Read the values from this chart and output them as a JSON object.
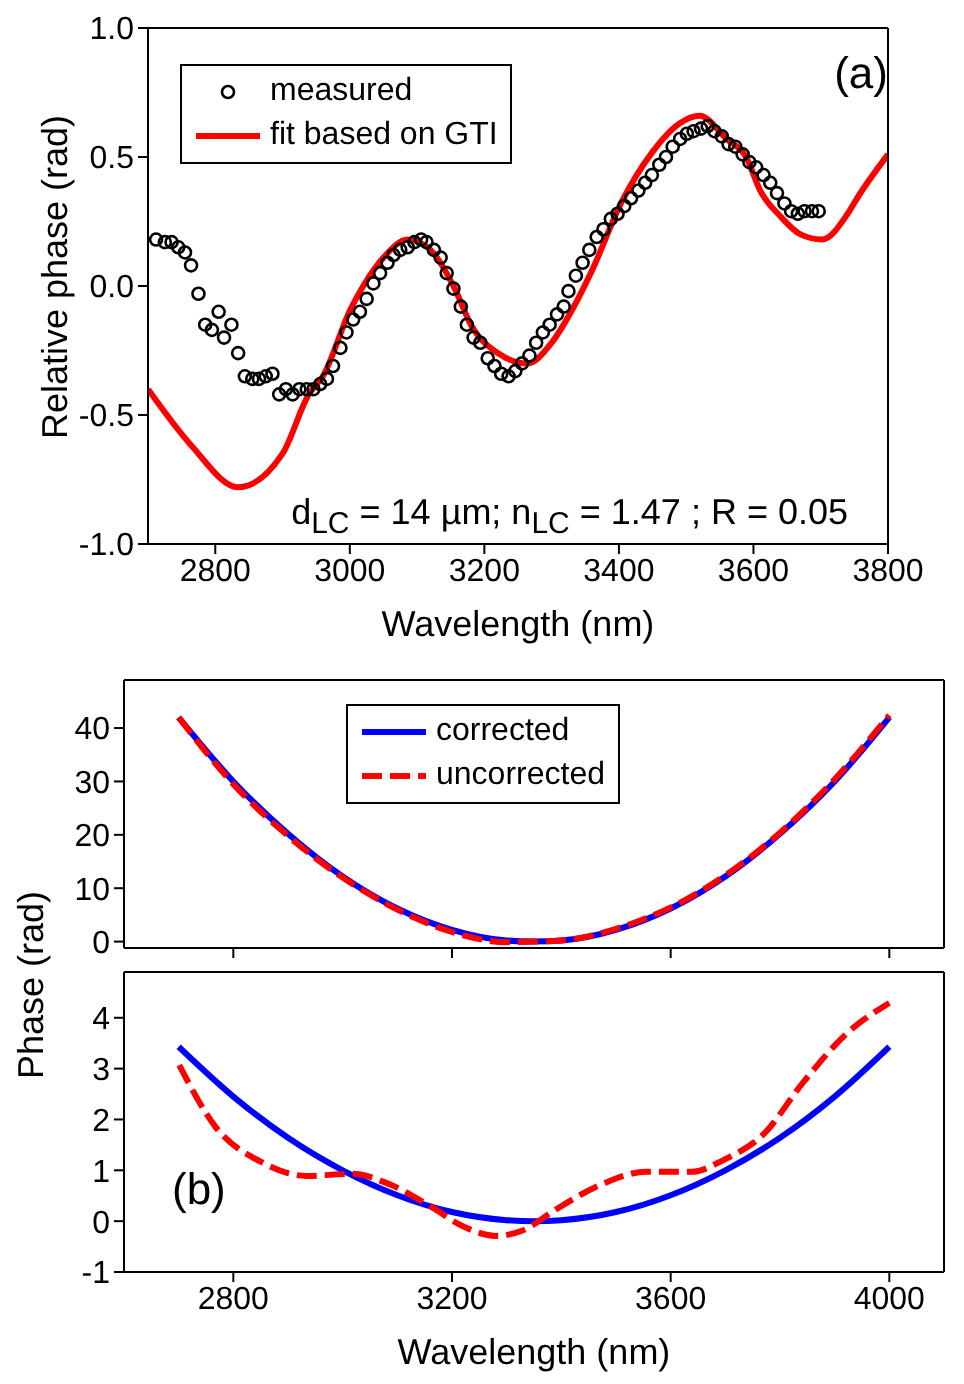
{
  "chart_data": [
    {
      "type": "line",
      "xlabel": "Wavelength (nm)",
      "ylabel": "Relative phase (rad)",
      "xlim": [
        2700,
        3800
      ],
      "xticks": [
        2800,
        3000,
        3200,
        3400,
        3600,
        3800
      ],
      "ylim": [
        -1,
        1
      ],
      "yticks": [
        {
          "value": -1,
          "label": "-1.0"
        },
        {
          "value": -0.5,
          "label": "-0.5"
        },
        {
          "value": 0,
          "label": "0.0"
        },
        {
          "value": 0.5,
          "label": "0.5"
        },
        {
          "value": 1,
          "label": "1.0"
        }
      ],
      "legend": "top left",
      "annotations": [
        "(a)",
        "d$_{LC}$ = 14 µm; n$_{LC}$ = 1.47 ; R = 0.05"
      ],
      "series": [
        {
          "name": "measured",
          "type": "scatter",
          "marker": "circle",
          "color": "#000000",
          "x": [
            2712,
            2725,
            2735,
            2745,
            2755,
            2764,
            2775,
            2785,
            2795,
            2805,
            2813,
            2824,
            2834,
            2844,
            2855,
            2865,
            2875,
            2885,
            2895,
            2905,
            2915,
            2925,
            2936,
            2946,
            2956,
            2966,
            2975,
            2986,
            2995,
            3005,
            3015,
            3025,
            3035,
            3045,
            3056,
            3065,
            3075,
            3086,
            3096,
            3106,
            3114,
            3125,
            3135,
            3144,
            3154,
            3165,
            3174,
            3184,
            3194,
            3205,
            3215,
            3225,
            3236,
            3246,
            3256,
            3267,
            3277,
            3287,
            3297,
            3308,
            3318,
            3325,
            3336,
            3346,
            3356,
            3367,
            3377,
            3388,
            3398,
            3408,
            3418,
            3429,
            3439,
            3449,
            3460,
            3470,
            3480,
            3491,
            3501,
            3511,
            3522,
            3532,
            3542,
            3553,
            3563,
            3573,
            3584,
            3594,
            3604,
            3615,
            3625,
            3635,
            3646,
            3656,
            3666,
            3676,
            3687,
            3697
          ],
          "values": [
            0.18,
            0.17,
            0.17,
            0.15,
            0.13,
            0.08,
            -0.03,
            -0.15,
            -0.17,
            -0.1,
            -0.2,
            -0.15,
            -0.26,
            -0.35,
            -0.36,
            -0.36,
            -0.35,
            -0.34,
            -0.42,
            -0.4,
            -0.42,
            -0.4,
            -0.4,
            -0.4,
            -0.38,
            -0.36,
            -0.31,
            -0.24,
            -0.18,
            -0.13,
            -0.1,
            -0.05,
            0.01,
            0.05,
            0.09,
            0.12,
            0.14,
            0.15,
            0.17,
            0.18,
            0.17,
            0.14,
            0.11,
            0.05,
            -0.01,
            -0.08,
            -0.15,
            -0.2,
            -0.22,
            -0.28,
            -0.31,
            -0.34,
            -0.35,
            -0.33,
            -0.3,
            -0.27,
            -0.22,
            -0.18,
            -0.15,
            -0.11,
            -0.08,
            -0.02,
            0.04,
            0.09,
            0.14,
            0.19,
            0.22,
            0.26,
            0.28,
            0.31,
            0.34,
            0.37,
            0.4,
            0.43,
            0.47,
            0.5,
            0.54,
            0.57,
            0.59,
            0.6,
            0.61,
            0.62,
            0.6,
            0.58,
            0.55,
            0.54,
            0.51,
            0.48,
            0.46,
            0.43,
            0.4,
            0.36,
            0.32,
            0.29,
            0.28,
            0.29,
            0.29,
            0.29
          ]
        },
        {
          "name": "fit based on GTI",
          "marker": "none",
          "color": "#ff0000",
          "x": [
            2700,
            2765,
            2834,
            2900,
            2939,
            2960,
            3001,
            3020,
            3050,
            3086,
            3120,
            3156,
            3180,
            3220,
            3264,
            3300,
            3331,
            3360,
            3403,
            3450,
            3490,
            3520,
            3560,
            3589,
            3610,
            3640,
            3670,
            3702,
            3740,
            3754,
            3800
          ],
          "values": [
            -0.4,
            -0.62,
            -0.78,
            -0.65,
            -0.42,
            -0.35,
            -0.09,
            0.0,
            0.11,
            0.18,
            0.14,
            -0.01,
            -0.15,
            -0.26,
            -0.3,
            -0.22,
            -0.09,
            0.06,
            0.32,
            0.52,
            0.63,
            0.66,
            0.57,
            0.5,
            0.37,
            0.27,
            0.2,
            0.18,
            0.28,
            0.34,
            0.51
          ]
        }
      ]
    },
    {
      "type": "line",
      "ylabel": "Phase (rad)",
      "xlim": [
        2600,
        4100
      ],
      "xticks": [
        2800,
        3200,
        3600,
        4000
      ],
      "ylim": [
        -1.2,
        49
      ],
      "yticks": [
        0,
        10,
        20,
        30,
        40
      ],
      "tick_labels": "y",
      "legend": "top",
      "x": [
        2700,
        2800,
        2900,
        3000,
        3100,
        3200,
        3300,
        3350,
        3400,
        3500,
        3600,
        3700,
        3800,
        3900,
        4000
      ],
      "series": [
        {
          "name": "corrected",
          "color": "#0000ff",
          "line_style": "solid",
          "values": [
            42,
            30,
            20.2,
            12.2,
            6.2,
            2.2,
            0.2,
            0,
            0.2,
            2.2,
            6.2,
            12.2,
            20.2,
            30,
            42
          ]
        },
        {
          "name": "uncorrected",
          "color": "#ff0000",
          "line_style": "dashed",
          "values": [
            42,
            29.5,
            19.8,
            12,
            6,
            1.8,
            -0.1,
            0,
            0.2,
            2.4,
            6.4,
            12.4,
            20.4,
            30.4,
            42.4
          ]
        }
      ]
    },
    {
      "type": "line",
      "xlabel": "Wavelength (nm)",
      "xlim": [
        2600,
        4100
      ],
      "xticks": [
        2800,
        3200,
        3600,
        4000
      ],
      "ylim": [
        -1,
        4.9
      ],
      "yticks": [
        -1,
        0,
        1,
        2,
        3,
        4
      ],
      "annotations": [
        "(b)"
      ],
      "series": [
        {
          "color": "#0000ff",
          "line_style": "solid",
          "x": [
            2700,
            2800,
            2900,
            3000,
            3100,
            3200,
            3300,
            3350,
            3400,
            3500,
            3600,
            3700,
            3800,
            3900,
            4000
          ],
          "values": [
            3.43,
            2.45,
            1.64,
            1.0,
            0.51,
            0.18,
            0.02,
            0,
            0.02,
            0.18,
            0.51,
            1.0,
            1.64,
            2.45,
            3.43
          ]
        },
        {
          "color": "#ff0000",
          "line_style": "dashed",
          "x": [
            2701,
            2767,
            2850,
            2934,
            3017,
            3089,
            3161,
            3220,
            3280,
            3328,
            3387,
            3471,
            3555,
            3638,
            3698,
            3770,
            3841,
            3924,
            4000
          ],
          "values": [
            3.07,
            1.86,
            1.17,
            0.89,
            0.93,
            0.71,
            0.29,
            -0.1,
            -0.29,
            -0.19,
            0.21,
            0.71,
            0.97,
            0.97,
            1.21,
            1.71,
            2.71,
            3.71,
            4.29
          ]
        }
      ]
    }
  ]
}
